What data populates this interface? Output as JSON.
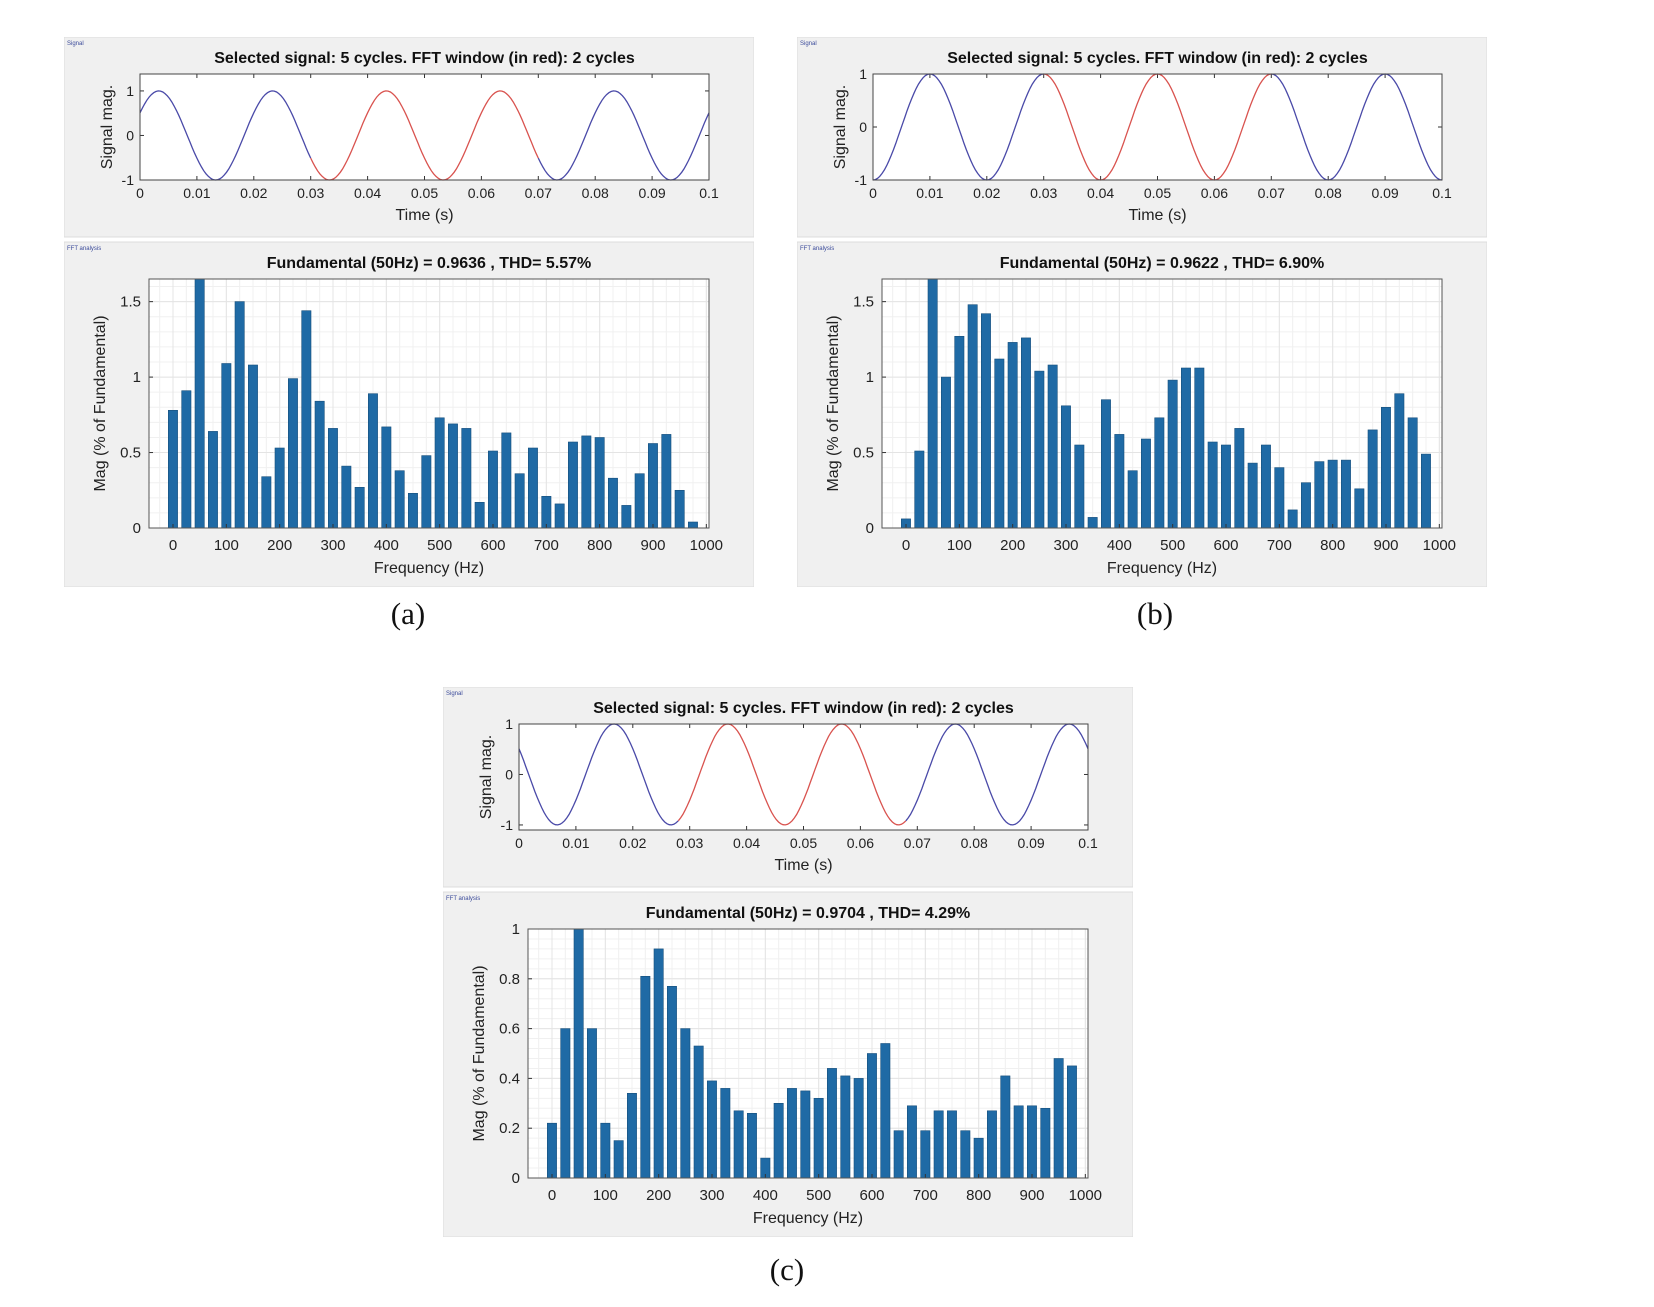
{
  "panels": [
    {
      "label": "(a)",
      "signal_chart": 0,
      "fft_chart": 1
    },
    {
      "label": "(b)",
      "signal_chart": 2,
      "fft_chart": 3
    },
    {
      "label": "(c)",
      "signal_chart": 4,
      "fft_chart": 5
    }
  ],
  "colors": {
    "blue_signal": "#4a4aa8",
    "red_window": "#d9534f",
    "bar": "#1f6aa5",
    "panel_bg": "#f0f0f0",
    "grid": "#e4e4e4"
  },
  "chart_data": [
    {
      "type": "line",
      "panel": "a",
      "section_label": "Signal",
      "title": "Selected signal: 5 cycles. FFT window (in red): 2 cycles",
      "xlabel": "Time (s)",
      "ylabel": "Signal mag.",
      "xlim": [
        0,
        0.1
      ],
      "ylim": [
        -1,
        1.38
      ],
      "xticks": [
        "0",
        "0.01",
        "0.02",
        "0.03",
        "0.04",
        "0.05",
        "0.06",
        "0.07",
        "0.08",
        "0.09",
        "0.1"
      ],
      "yticks": [
        "-1",
        "0",
        "1"
      ],
      "frequency_hz": 50,
      "amplitude": 1,
      "peak_time_s": 0.0033,
      "fft_window_s": [
        0.03,
        0.07
      ]
    },
    {
      "type": "bar",
      "panel": "a",
      "section_label": "FFT analysis",
      "title": "Fundamental (50Hz) = 0.9636 , THD= 5.57%",
      "xlabel": "Frequency (Hz)",
      "ylabel": "Mag (% of Fundamental)",
      "xlim": [
        -45,
        1005
      ],
      "ylim": [
        0,
        1.65
      ],
      "grid": true,
      "xticks": [
        "0",
        "100",
        "200",
        "300",
        "400",
        "500",
        "600",
        "700",
        "800",
        "900",
        "1000"
      ],
      "yticks": [
        "0",
        "0.5",
        "1",
        "1.5"
      ],
      "categories": [
        0,
        25,
        50,
        75,
        100,
        125,
        150,
        175,
        200,
        225,
        250,
        275,
        300,
        325,
        350,
        375,
        400,
        425,
        450,
        475,
        500,
        525,
        550,
        575,
        600,
        625,
        650,
        675,
        700,
        725,
        750,
        775,
        800,
        825,
        850,
        875,
        900,
        925,
        950,
        975
      ],
      "values": [
        0.78,
        0.91,
        1.65,
        0.64,
        1.09,
        1.5,
        1.08,
        0.34,
        0.53,
        0.99,
        1.44,
        0.84,
        0.66,
        0.41,
        0.27,
        0.89,
        0.67,
        0.38,
        0.23,
        0.48,
        0.73,
        0.69,
        0.66,
        0.17,
        0.51,
        0.63,
        0.36,
        0.53,
        0.21,
        0.16,
        0.57,
        0.61,
        0.6,
        0.33,
        0.15,
        0.36,
        0.56,
        0.62,
        0.25,
        0.04
      ]
    },
    {
      "type": "line",
      "panel": "b",
      "section_label": "Signal",
      "title": "Selected signal: 5 cycles. FFT window (in red): 2 cycles",
      "xlabel": "Time (s)",
      "ylabel": "Signal mag.",
      "xlim": [
        0,
        0.1
      ],
      "ylim": [
        -1,
        1
      ],
      "xticks": [
        "0",
        "0.01",
        "0.02",
        "0.03",
        "0.04",
        "0.05",
        "0.06",
        "0.07",
        "0.08",
        "0.09",
        "0.1"
      ],
      "yticks": [
        "-1",
        "0",
        "1"
      ],
      "frequency_hz": 50,
      "amplitude": 1,
      "peak_time_s": 0.01,
      "fft_window_s": [
        0.03,
        0.07
      ]
    },
    {
      "type": "bar",
      "panel": "b",
      "section_label": "FFT analysis",
      "title": "Fundamental (50Hz) = 0.9622 , THD= 6.90%",
      "xlabel": "Frequency (Hz)",
      "ylabel": "Mag (% of Fundamental)",
      "xlim": [
        -45,
        1005
      ],
      "ylim": [
        0,
        1.65
      ],
      "grid": true,
      "xticks": [
        "0",
        "100",
        "200",
        "300",
        "400",
        "500",
        "600",
        "700",
        "800",
        "900",
        "1000"
      ],
      "yticks": [
        "0",
        "0.5",
        "1",
        "1.5"
      ],
      "categories": [
        0,
        25,
        50,
        75,
        100,
        125,
        150,
        175,
        200,
        225,
        250,
        275,
        300,
        325,
        350,
        375,
        400,
        425,
        450,
        475,
        500,
        525,
        550,
        575,
        600,
        625,
        650,
        675,
        700,
        725,
        750,
        775,
        800,
        825,
        850,
        875,
        900,
        925,
        950,
        975
      ],
      "values": [
        0.06,
        0.51,
        1.65,
        1.0,
        1.27,
        1.48,
        1.42,
        1.12,
        1.23,
        1.26,
        1.04,
        1.08,
        0.81,
        0.55,
        0.07,
        0.85,
        0.62,
        0.38,
        0.59,
        0.73,
        0.98,
        1.06,
        1.06,
        0.57,
        0.55,
        0.66,
        0.43,
        0.55,
        0.4,
        0.12,
        0.3,
        0.44,
        0.45,
        0.45,
        0.26,
        0.65,
        0.8,
        0.89,
        0.73,
        0.49
      ]
    },
    {
      "type": "line",
      "panel": "c",
      "section_label": "Signal",
      "title": "Selected signal: 5 cycles. FFT window (in red): 2 cycles",
      "xlabel": "Time (s)",
      "ylabel": "Signal mag.",
      "xlim": [
        0,
        0.1
      ],
      "ylim": [
        -1.1,
        1
      ],
      "xticks": [
        "0",
        "0.01",
        "0.02",
        "0.03",
        "0.04",
        "0.05",
        "0.06",
        "0.07",
        "0.08",
        "0.09",
        "0.1"
      ],
      "yticks": [
        "-1",
        "0",
        "1"
      ],
      "frequency_hz": 50,
      "amplitude": 1,
      "peak_time_s": 0.0167,
      "fft_window_s": [
        0.028,
        0.068
      ]
    },
    {
      "type": "bar",
      "panel": "c",
      "section_label": "FFT analysis",
      "title": "Fundamental (50Hz) = 0.9704 , THD= 4.29%",
      "xlabel": "Frequency (Hz)",
      "ylabel": "Mag (% of Fundamental)",
      "xlim": [
        -45,
        1005
      ],
      "ylim": [
        0,
        1
      ],
      "grid": true,
      "xticks": [
        "0",
        "100",
        "200",
        "300",
        "400",
        "500",
        "600",
        "700",
        "800",
        "900",
        "1000"
      ],
      "yticks": [
        "0",
        "0.2",
        "0.4",
        "0.6",
        "0.8",
        "1"
      ],
      "categories": [
        0,
        25,
        50,
        75,
        100,
        125,
        150,
        175,
        200,
        225,
        250,
        275,
        300,
        325,
        350,
        375,
        400,
        425,
        450,
        475,
        500,
        525,
        550,
        575,
        600,
        625,
        650,
        675,
        700,
        725,
        750,
        775,
        800,
        825,
        850,
        875,
        900,
        925,
        950,
        975
      ],
      "values": [
        0.22,
        0.6,
        1.0,
        0.6,
        0.22,
        0.15,
        0.34,
        0.81,
        0.92,
        0.77,
        0.6,
        0.53,
        0.39,
        0.36,
        0.27,
        0.26,
        0.08,
        0.3,
        0.36,
        0.35,
        0.32,
        0.44,
        0.41,
        0.4,
        0.5,
        0.54,
        0.19,
        0.29,
        0.19,
        0.27,
        0.27,
        0.19,
        0.16,
        0.27,
        0.41,
        0.29,
        0.29,
        0.28,
        0.48,
        0.45
      ]
    }
  ]
}
